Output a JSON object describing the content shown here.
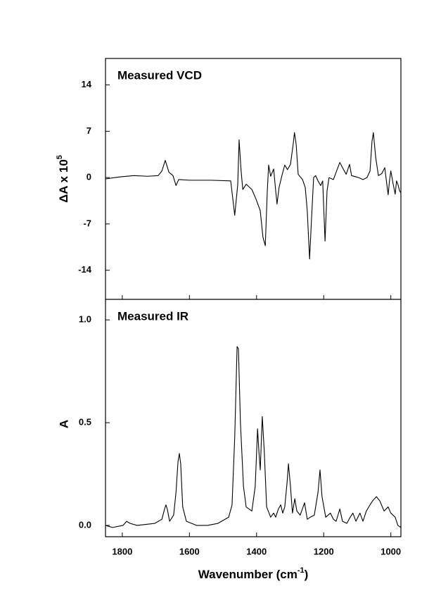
{
  "chart_data": [
    {
      "type": "line",
      "annotation": "Measured VCD",
      "ylabel": "ΔA x 10",
      "ylabel_superscript": "5",
      "color": "#000000",
      "xlim": [
        1850,
        970
      ],
      "ylim": [
        -18.4,
        18
      ],
      "yticks": [
        -14,
        -7,
        0,
        7,
        14
      ],
      "x": [
        1850,
        1808,
        1766,
        1724,
        1693,
        1682,
        1672,
        1661,
        1649,
        1640,
        1632,
        1599,
        1536,
        1477,
        1465,
        1456,
        1452,
        1446,
        1441,
        1431,
        1414,
        1402,
        1389,
        1381,
        1374,
        1368,
        1364,
        1358,
        1349,
        1343,
        1339,
        1333,
        1324,
        1316,
        1308,
        1299,
        1291,
        1287,
        1282,
        1276,
        1263,
        1255,
        1249,
        1242,
        1236,
        1230,
        1224,
        1217,
        1209,
        1203,
        1196,
        1190,
        1184,
        1171,
        1163,
        1152,
        1144,
        1133,
        1123,
        1117,
        1096,
        1083,
        1071,
        1062,
        1056,
        1052,
        1045,
        1037,
        1027,
        1018,
        1012,
        1008,
        1004,
        1000,
        993,
        987,
        983,
        979,
        974,
        970
      ],
      "values": [
        -0.2,
        0.1,
        0.3,
        0.2,
        0.3,
        1.0,
        2.6,
        0.8,
        0.3,
        -1.2,
        -0.3,
        -0.4,
        -0.4,
        -0.5,
        -5.7,
        -1.0,
        5.7,
        1.0,
        -1.8,
        -1.0,
        -1.8,
        -3.2,
        -5.0,
        -9.0,
        -10.3,
        -2.0,
        1.9,
        0.2,
        1.3,
        -2.0,
        -4.0,
        -1.5,
        0.4,
        1.9,
        1.2,
        2.0,
        5.0,
        6.8,
        5.0,
        0.5,
        -0.3,
        -1.5,
        -5.0,
        -12.3,
        -6.0,
        0.0,
        0.3,
        -0.5,
        -1.2,
        -0.5,
        -9.6,
        -2.0,
        0.0,
        -0.3,
        0.8,
        2.3,
        1.5,
        0.5,
        2.0,
        0.3,
        0.0,
        -0.3,
        0.0,
        1.0,
        5.5,
        6.8,
        3.0,
        0.3,
        0.6,
        1.5,
        -1.0,
        -2.6,
        -0.5,
        1.0,
        -1.0,
        -2.5,
        -0.5,
        -1.0,
        -2.0,
        -2.3
      ]
    },
    {
      "type": "line",
      "annotation": "Measured IR",
      "ylabel": "A",
      "xlabel": "Wavenumber (cm",
      "xlabel_superscript": "-1",
      "xlabel_suffix": ")",
      "color": "#000000",
      "xlim": [
        1850,
        970
      ],
      "xticks": [
        1800,
        1600,
        1400,
        1200,
        1000
      ],
      "ylim": [
        -0.055,
        1.1
      ],
      "yticks": [
        {
          "value": 0,
          "label": "0.0"
        },
        0.5,
        {
          "value": 1,
          "label": "1.0"
        }
      ],
      "x": [
        1850,
        1829,
        1798,
        1787,
        1777,
        1756,
        1703,
        1682,
        1674,
        1670,
        1666,
        1659,
        1647,
        1640,
        1634,
        1630,
        1626,
        1620,
        1609,
        1578,
        1546,
        1515,
        1483,
        1473,
        1465,
        1458,
        1454,
        1448,
        1439,
        1431,
        1414,
        1404,
        1397,
        1393,
        1389,
        1383,
        1377,
        1370,
        1358,
        1349,
        1343,
        1335,
        1328,
        1322,
        1316,
        1309,
        1305,
        1299,
        1293,
        1286,
        1280,
        1270,
        1257,
        1249,
        1240,
        1228,
        1217,
        1211,
        1205,
        1194,
        1180,
        1171,
        1163,
        1152,
        1144,
        1131,
        1121,
        1113,
        1104,
        1092,
        1083,
        1073,
        1062,
        1054,
        1043,
        1033,
        1020,
        1008,
        1000,
        987,
        979,
        970
      ],
      "values": [
        0,
        -0.01,
        0.0,
        0.02,
        0.01,
        0.0,
        0.01,
        0.03,
        0.08,
        0.1,
        0.08,
        0.02,
        0.05,
        0.16,
        0.31,
        0.35,
        0.3,
        0.09,
        0.02,
        0.0,
        0.0,
        0.01,
        0.04,
        0.1,
        0.43,
        0.87,
        0.86,
        0.5,
        0.19,
        0.09,
        0.07,
        0.19,
        0.47,
        0.36,
        0.27,
        0.53,
        0.36,
        0.09,
        0.04,
        0.06,
        0.04,
        0.08,
        0.1,
        0.06,
        0.09,
        0.21,
        0.3,
        0.19,
        0.06,
        0.13,
        0.07,
        0.05,
        0.11,
        0.03,
        0.04,
        0.05,
        0.16,
        0.27,
        0.14,
        0.04,
        0.06,
        0.03,
        0.02,
        0.08,
        0.02,
        0.01,
        0.04,
        0.06,
        0.02,
        0.06,
        0.02,
        0.07,
        0.1,
        0.12,
        0.14,
        0.12,
        0.07,
        0.09,
        0.06,
        0.04,
        0.0,
        -0.01
      ]
    }
  ]
}
